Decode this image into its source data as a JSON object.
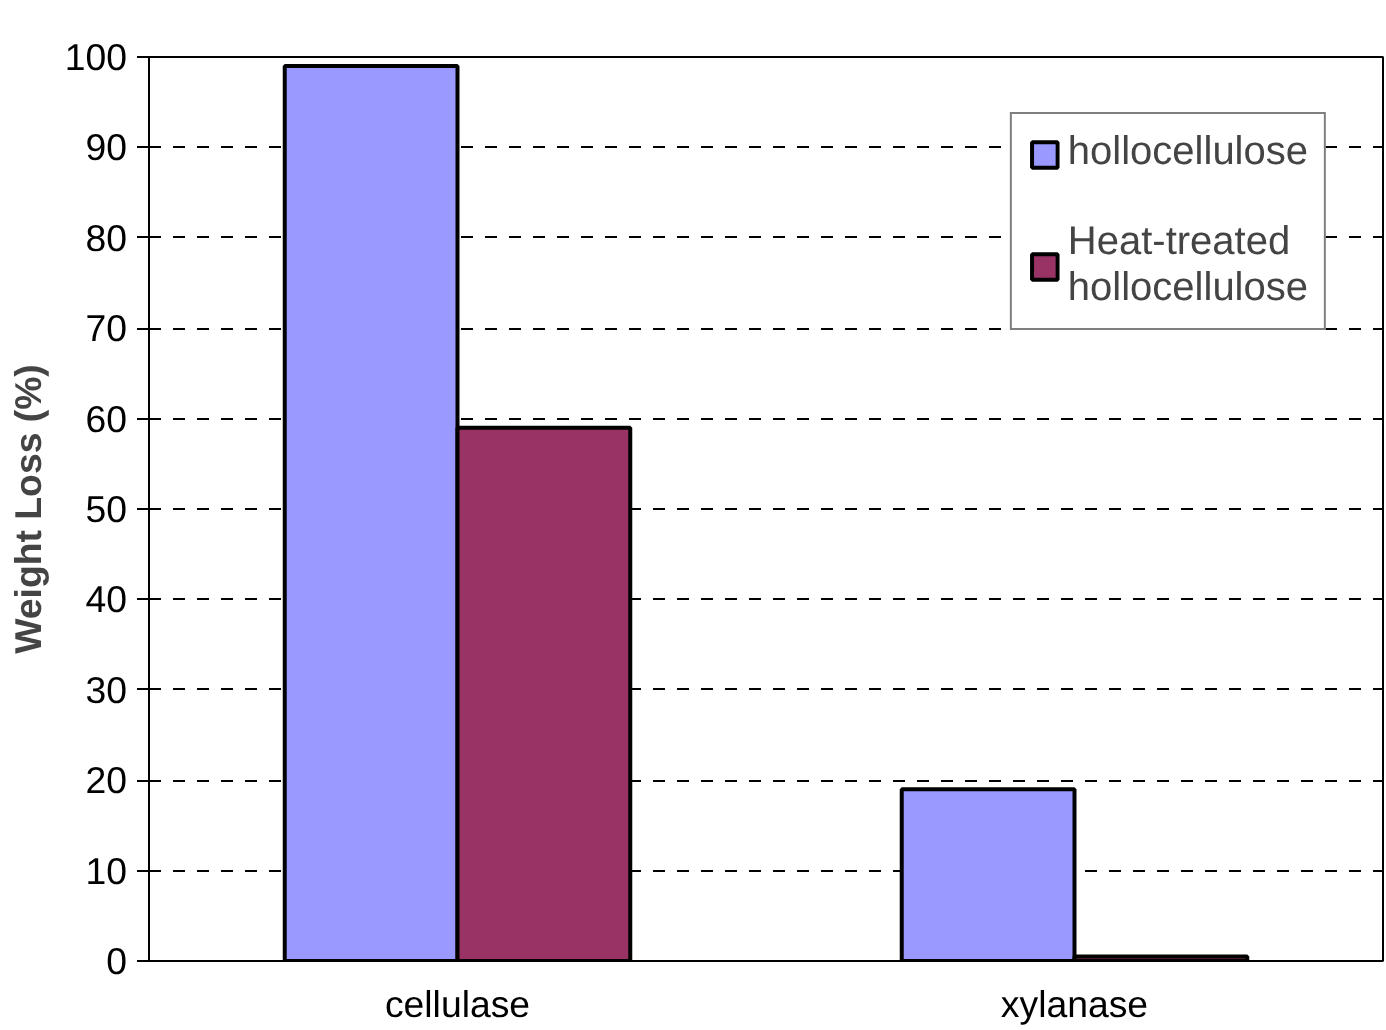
{
  "chart_data": {
    "type": "bar",
    "ylabel": "Weight Loss (%)",
    "categories": [
      "cellulase",
      "xylanase"
    ],
    "series": [
      {
        "name": "hollocellulose",
        "color": "#9999ff",
        "values": [
          99,
          19
        ]
      },
      {
        "name": "Heat-treated\nhollocellulose",
        "color": "#993366",
        "values": [
          59,
          0.5
        ]
      }
    ],
    "ylim": [
      0,
      100
    ],
    "yticks": [
      0,
      10,
      20,
      30,
      40,
      50,
      60,
      70,
      80,
      90,
      100
    ],
    "grid": "y",
    "legend": "top right"
  }
}
